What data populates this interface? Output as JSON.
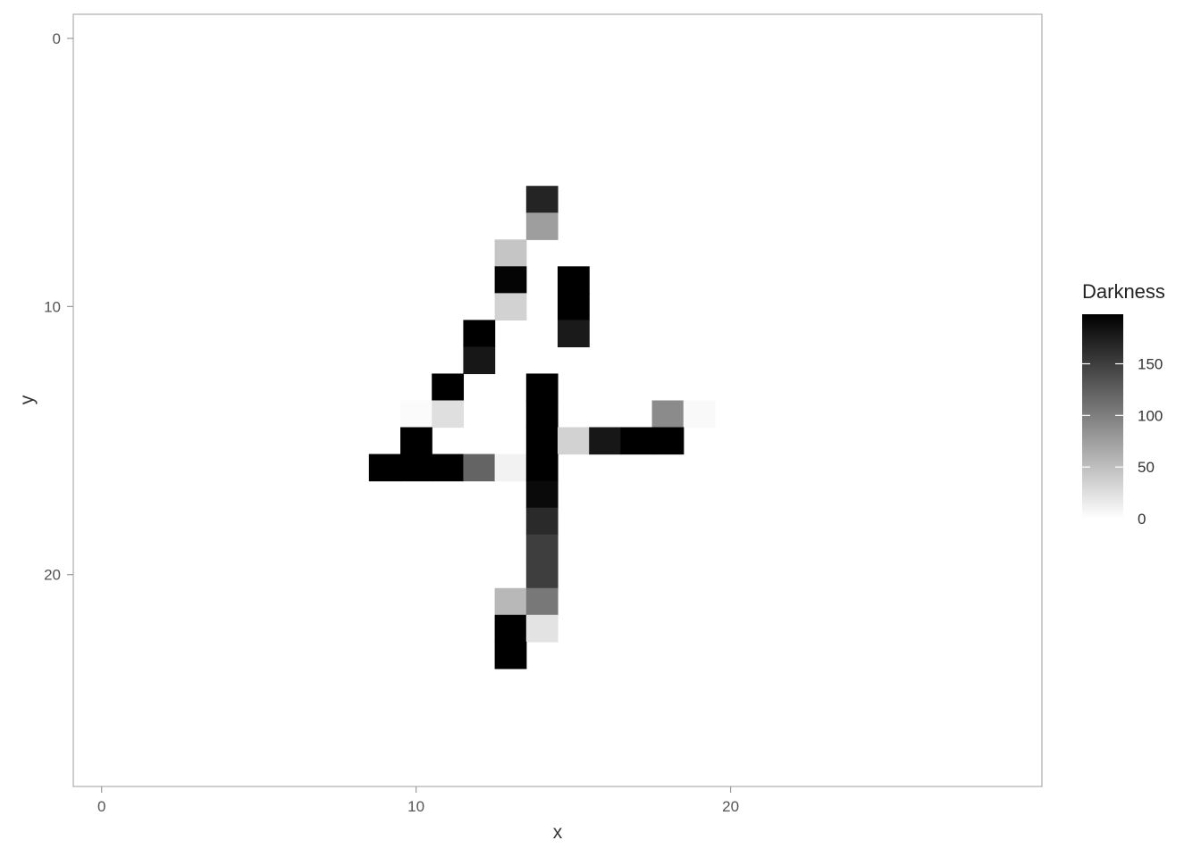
{
  "chart_data": {
    "type": "heatmap",
    "xlabel": "x",
    "ylabel": "y",
    "xlim": [
      -0.9,
      29.9
    ],
    "ylim": [
      27.9,
      -0.9
    ],
    "y_reversed": true,
    "x_ticks": [
      0,
      10,
      20
    ],
    "y_ticks": [
      0,
      10,
      20
    ],
    "grid": false,
    "legend": {
      "title": "Darkness",
      "placement": "right",
      "type": "colorbar",
      "min": 0,
      "max": 198,
      "ticks": [
        0,
        50,
        100,
        150
      ],
      "low_color": "#ffffff",
      "high_color": "#000000"
    },
    "cells": [
      {
        "x": 14,
        "y": 6,
        "value": 170
      },
      {
        "x": 14,
        "y": 7,
        "value": 75
      },
      {
        "x": 13,
        "y": 8,
        "value": 45
      },
      {
        "x": 13,
        "y": 9,
        "value": 195
      },
      {
        "x": 15,
        "y": 9,
        "value": 198
      },
      {
        "x": 13,
        "y": 10,
        "value": 35
      },
      {
        "x": 15,
        "y": 10,
        "value": 198
      },
      {
        "x": 12,
        "y": 11,
        "value": 198
      },
      {
        "x": 15,
        "y": 11,
        "value": 178
      },
      {
        "x": 12,
        "y": 12,
        "value": 180
      },
      {
        "x": 11,
        "y": 13,
        "value": 198
      },
      {
        "x": 14,
        "y": 13,
        "value": 198
      },
      {
        "x": 10,
        "y": 14,
        "value": 3
      },
      {
        "x": 11,
        "y": 14,
        "value": 25
      },
      {
        "x": 14,
        "y": 14,
        "value": 198
      },
      {
        "x": 18,
        "y": 14,
        "value": 90
      },
      {
        "x": 19,
        "y": 14,
        "value": 5
      },
      {
        "x": 10,
        "y": 15,
        "value": 198
      },
      {
        "x": 14,
        "y": 15,
        "value": 198
      },
      {
        "x": 15,
        "y": 15,
        "value": 35
      },
      {
        "x": 16,
        "y": 15,
        "value": 180
      },
      {
        "x": 17,
        "y": 15,
        "value": 198
      },
      {
        "x": 18,
        "y": 15,
        "value": 198
      },
      {
        "x": 9,
        "y": 16,
        "value": 198
      },
      {
        "x": 10,
        "y": 16,
        "value": 198
      },
      {
        "x": 11,
        "y": 16,
        "value": 198
      },
      {
        "x": 12,
        "y": 16,
        "value": 120
      },
      {
        "x": 13,
        "y": 16,
        "value": 10
      },
      {
        "x": 14,
        "y": 16,
        "value": 198
      },
      {
        "x": 14,
        "y": 17,
        "value": 190
      },
      {
        "x": 14,
        "y": 18,
        "value": 165
      },
      {
        "x": 14,
        "y": 19,
        "value": 150
      },
      {
        "x": 14,
        "y": 20,
        "value": 150
      },
      {
        "x": 13,
        "y": 21,
        "value": 55
      },
      {
        "x": 14,
        "y": 21,
        "value": 105
      },
      {
        "x": 13,
        "y": 22,
        "value": 198
      },
      {
        "x": 14,
        "y": 22,
        "value": 22
      },
      {
        "x": 13,
        "y": 23,
        "value": 198
      }
    ]
  }
}
